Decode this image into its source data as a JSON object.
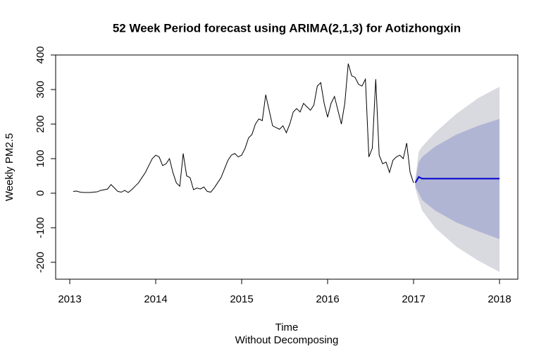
{
  "chart_data": {
    "type": "line",
    "title": "52 Week Period forecast using ARIMA(2,1,3) for Aotizhongxin",
    "xlabel": "Time",
    "subtitle": "Without Decomposing",
    "ylabel": "Weekly PM2.5",
    "xlim": [
      2012.836,
      2018.213
    ],
    "ylim": [
      -249,
      400
    ],
    "xticks": [
      2013,
      2014,
      2015,
      2016,
      2017,
      2018
    ],
    "yticks": [
      -200,
      -100,
      0,
      100,
      200,
      300,
      400
    ],
    "bands": [
      {
        "color": "#d9d9e0",
        "x": [
          2017.02,
          2017.06,
          2017.1,
          2017.25,
          2017.5,
          2017.75,
          2018.0
        ],
        "lower": [
          15,
          -20,
          -50,
          -100,
          -155,
          -195,
          -228
        ],
        "upper": [
          40,
          120,
          135,
          175,
          230,
          275,
          308
        ]
      },
      {
        "color": "#b1b5d4",
        "x": [
          2017.02,
          2017.06,
          2017.1,
          2017.25,
          2017.5,
          2017.75,
          2018.0
        ],
        "lower": [
          20,
          0,
          -20,
          -50,
          -85,
          -110,
          -133
        ],
        "upper": [
          35,
          90,
          105,
          135,
          170,
          195,
          215
        ]
      }
    ],
    "series": [
      {
        "color": "#000000",
        "x": [
          2013.04,
          2013.08,
          2013.12,
          2013.16,
          2013.2,
          2013.24,
          2013.28,
          2013.32,
          2013.36,
          2013.4,
          2013.44,
          2013.48,
          2013.52,
          2013.56,
          2013.6,
          2013.64,
          2013.68,
          2013.72,
          2013.76,
          2013.8,
          2013.84,
          2013.88,
          2013.92,
          2013.96,
          2014.0,
          2014.04,
          2014.08,
          2014.12,
          2014.16,
          2014.2,
          2014.24,
          2014.28,
          2014.32,
          2014.36,
          2014.4,
          2014.44,
          2014.48,
          2014.52,
          2014.56,
          2014.6,
          2014.64,
          2014.68,
          2014.72,
          2014.76,
          2014.8,
          2014.84,
          2014.88,
          2014.92,
          2014.96,
          2015.0,
          2015.04,
          2015.08,
          2015.12,
          2015.16,
          2015.2,
          2015.24,
          2015.28,
          2015.32,
          2015.36,
          2015.4,
          2015.44,
          2015.48,
          2015.52,
          2015.56,
          2015.6,
          2015.64,
          2015.68,
          2015.72,
          2015.76,
          2015.8,
          2015.84,
          2015.88,
          2015.92,
          2015.96,
          2016.0,
          2016.04,
          2016.08,
          2016.12,
          2016.16,
          2016.2,
          2016.24,
          2016.28,
          2016.32,
          2016.36,
          2016.4,
          2016.44,
          2016.48,
          2016.52,
          2016.56,
          2016.6,
          2016.64,
          2016.68,
          2016.72,
          2016.76,
          2016.8,
          2016.84,
          2016.88,
          2016.92,
          2016.96,
          2017.0
        ],
        "values": [
          5,
          6,
          3,
          2,
          2,
          2,
          3,
          4,
          8,
          10,
          12,
          25,
          15,
          5,
          3,
          8,
          2,
          10,
          20,
          30,
          45,
          60,
          80,
          100,
          110,
          105,
          80,
          85,
          100,
          60,
          30,
          20,
          115,
          50,
          45,
          10,
          15,
          12,
          18,
          5,
          3,
          15,
          30,
          45,
          70,
          95,
          110,
          115,
          105,
          110,
          130,
          160,
          170,
          200,
          215,
          210,
          285,
          240,
          195,
          190,
          185,
          195,
          175,
          200,
          235,
          245,
          235,
          260,
          250,
          240,
          255,
          310,
          320,
          260,
          220,
          260,
          280,
          240,
          200,
          260,
          375,
          340,
          335,
          315,
          310,
          330,
          105,
          130,
          330,
          110,
          85,
          90,
          60,
          95,
          105,
          110,
          100,
          145,
          60,
          30
        ]
      },
      {
        "color": "#0000cc",
        "x": [
          2017.02,
          2017.06,
          2017.1,
          2018.0
        ],
        "values": [
          30,
          47,
          42,
          42
        ]
      }
    ]
  }
}
